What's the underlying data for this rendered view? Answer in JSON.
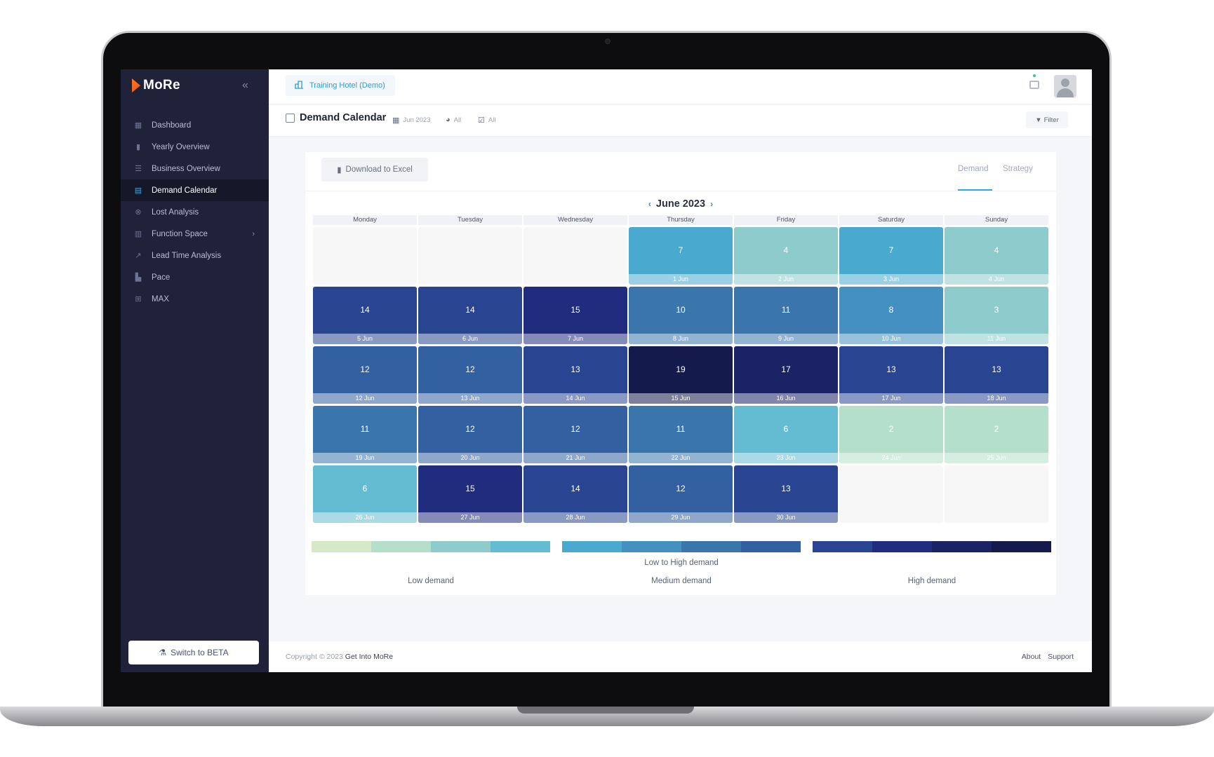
{
  "app": {
    "logo_text": "MoRe",
    "collapse_icon": "double-chevron-left-icon"
  },
  "sidebar": {
    "items": [
      {
        "label": "Dashboard",
        "icon": "grid-icon",
        "active": false
      },
      {
        "label": "Yearly Overview",
        "icon": "bar-chart-icon",
        "active": false
      },
      {
        "label": "Business Overview",
        "icon": "list-icon",
        "active": false
      },
      {
        "label": "Demand Calendar",
        "icon": "calendar-icon",
        "active": true
      },
      {
        "label": "Lost Analysis",
        "icon": "close-circle-icon",
        "active": false
      },
      {
        "label": "Function Space",
        "icon": "table-icon",
        "active": false,
        "has_submenu": true
      },
      {
        "label": "Lead Time Analysis",
        "icon": "line-chart-icon",
        "active": false
      },
      {
        "label": "Pace",
        "icon": "area-chart-icon",
        "active": false
      },
      {
        "label": "MAX",
        "icon": "robot-icon",
        "active": false
      }
    ],
    "beta_button": "Switch to BETA"
  },
  "topbar": {
    "hotel": "Training Hotel (Demo)"
  },
  "page": {
    "title": "Demand Calendar",
    "period": "Jun 2023",
    "segment": "All",
    "status": "All",
    "filter_label": "Filter"
  },
  "card": {
    "download_label": "Download to Excel",
    "tabs": [
      "Demand",
      "Strategy"
    ],
    "active_tab": "Demand",
    "month": "June 2023",
    "weekdays": [
      "Monday",
      "Tuesday",
      "Wednesday",
      "Thursday",
      "Friday",
      "Saturday",
      "Sunday"
    ],
    "weeks": [
      [
        null,
        null,
        null,
        {
          "value": "7",
          "date": "1 Jun",
          "color": "#4aa9ce"
        },
        {
          "value": "4",
          "date": "2 Jun",
          "color": "#8ecbcc"
        },
        {
          "value": "7",
          "date": "3 Jun",
          "color": "#4aa9ce"
        },
        {
          "value": "4",
          "date": "4 Jun",
          "color": "#8ecbcc"
        }
      ],
      [
        {
          "value": "14",
          "date": "5 Jun",
          "color": "#294591"
        },
        {
          "value": "14",
          "date": "6 Jun",
          "color": "#294591"
        },
        {
          "value": "15",
          "date": "7 Jun",
          "color": "#212c7f"
        },
        {
          "value": "10",
          "date": "8 Jun",
          "color": "#3a76ac"
        },
        {
          "value": "11",
          "date": "9 Jun",
          "color": "#3a76ac"
        },
        {
          "value": "8",
          "date": "10 Jun",
          "color": "#4490c0"
        },
        {
          "value": "3",
          "date": "11 Jun",
          "color": "#8ecbcc"
        }
      ],
      [
        {
          "value": "12",
          "date": "12 Jun",
          "color": "#3360a0"
        },
        {
          "value": "12",
          "date": "13 Jun",
          "color": "#3360a0"
        },
        {
          "value": "13",
          "date": "14 Jun",
          "color": "#294591"
        },
        {
          "value": "19",
          "date": "15 Jun",
          "color": "#141a4c"
        },
        {
          "value": "17",
          "date": "16 Jun",
          "color": "#1b2266"
        },
        {
          "value": "13",
          "date": "17 Jun",
          "color": "#294591"
        },
        {
          "value": "13",
          "date": "18 Jun",
          "color": "#294591"
        }
      ],
      [
        {
          "value": "11",
          "date": "19 Jun",
          "color": "#3a76ac"
        },
        {
          "value": "12",
          "date": "20 Jun",
          "color": "#3360a0"
        },
        {
          "value": "12",
          "date": "21 Jun",
          "color": "#3360a0"
        },
        {
          "value": "11",
          "date": "22 Jun",
          "color": "#3a76ac"
        },
        {
          "value": "6",
          "date": "23 Jun",
          "color": "#63bcd1"
        },
        {
          "value": "2",
          "date": "24 Jun",
          "color": "#b4dfcb"
        },
        {
          "value": "2",
          "date": "25 Jun",
          "color": "#b4dfcb"
        }
      ],
      [
        {
          "value": "6",
          "date": "26 Jun",
          "color": "#63bcd1"
        },
        {
          "value": "15",
          "date": "27 Jun",
          "color": "#212c7f"
        },
        {
          "value": "14",
          "date": "28 Jun",
          "color": "#294591"
        },
        {
          "value": "12",
          "date": "29 Jun",
          "color": "#3360a0"
        },
        {
          "value": "13",
          "date": "30 Jun",
          "color": "#294591"
        },
        null,
        null
      ]
    ],
    "legend": {
      "low_colors": [
        "#d7e8c8",
        "#b4dfcb",
        "#8ecbcc",
        "#63bcd1"
      ],
      "medium_colors": [
        "#4aa9ce",
        "#4490c0",
        "#3a76ac",
        "#3360a0"
      ],
      "high_colors": [
        "#294591",
        "#212c7f",
        "#1b2266",
        "#141a4c"
      ],
      "caption": "Low to High demand",
      "low_label": "Low demand",
      "medium_label": "Medium demand",
      "high_label": "High demand"
    }
  },
  "footer": {
    "copyright": "Copyright © 2023",
    "brand": "Get Into MoRe",
    "links": [
      "About",
      "Support"
    ]
  }
}
